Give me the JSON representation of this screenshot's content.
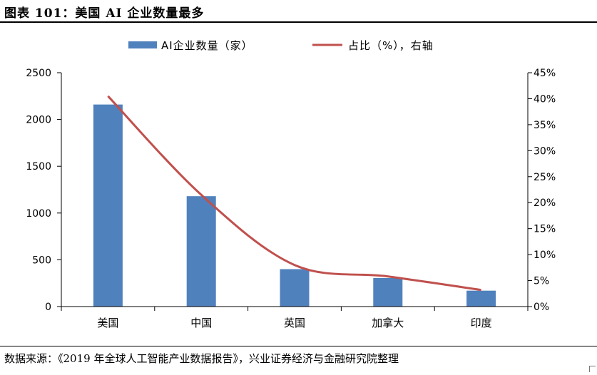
{
  "figure": {
    "title": "图表 101：美国 AI 企业数量最多",
    "source": "数据来源：《2019 年全球人工智能产业数据报告》，兴业证券经济与金融研究院整理"
  },
  "chart_data": {
    "type": "bar",
    "categories": [
      "美国",
      "中国",
      "英国",
      "加拿大",
      "印度"
    ],
    "series": [
      {
        "name": "AI企业数量（家）",
        "type": "bar",
        "axis": "left",
        "color": "#4f81bd",
        "values": [
          2160,
          1180,
          400,
          305,
          170
        ]
      },
      {
        "name": "占比（%），右轴",
        "type": "line",
        "axis": "right",
        "color": "#c0504d",
        "values": [
          40.5,
          21.5,
          8.0,
          5.8,
          3.2
        ]
      }
    ],
    "y_left": {
      "ylim": [
        0,
        2500
      ],
      "ticks": [
        0,
        500,
        1000,
        1500,
        2000,
        2500
      ],
      "tick_labels": [
        "0",
        "500",
        "1000",
        "1500",
        "2000",
        "2500"
      ]
    },
    "y_right": {
      "ylim": [
        0,
        45
      ],
      "ticks": [
        0,
        5,
        10,
        15,
        20,
        25,
        30,
        35,
        40,
        45
      ],
      "tick_labels": [
        "0%",
        "5%",
        "10%",
        "15%",
        "20%",
        "25%",
        "30%",
        "35%",
        "40%",
        "45%"
      ]
    },
    "grid": false,
    "legend_position": "top-center",
    "smooth_line": true
  }
}
